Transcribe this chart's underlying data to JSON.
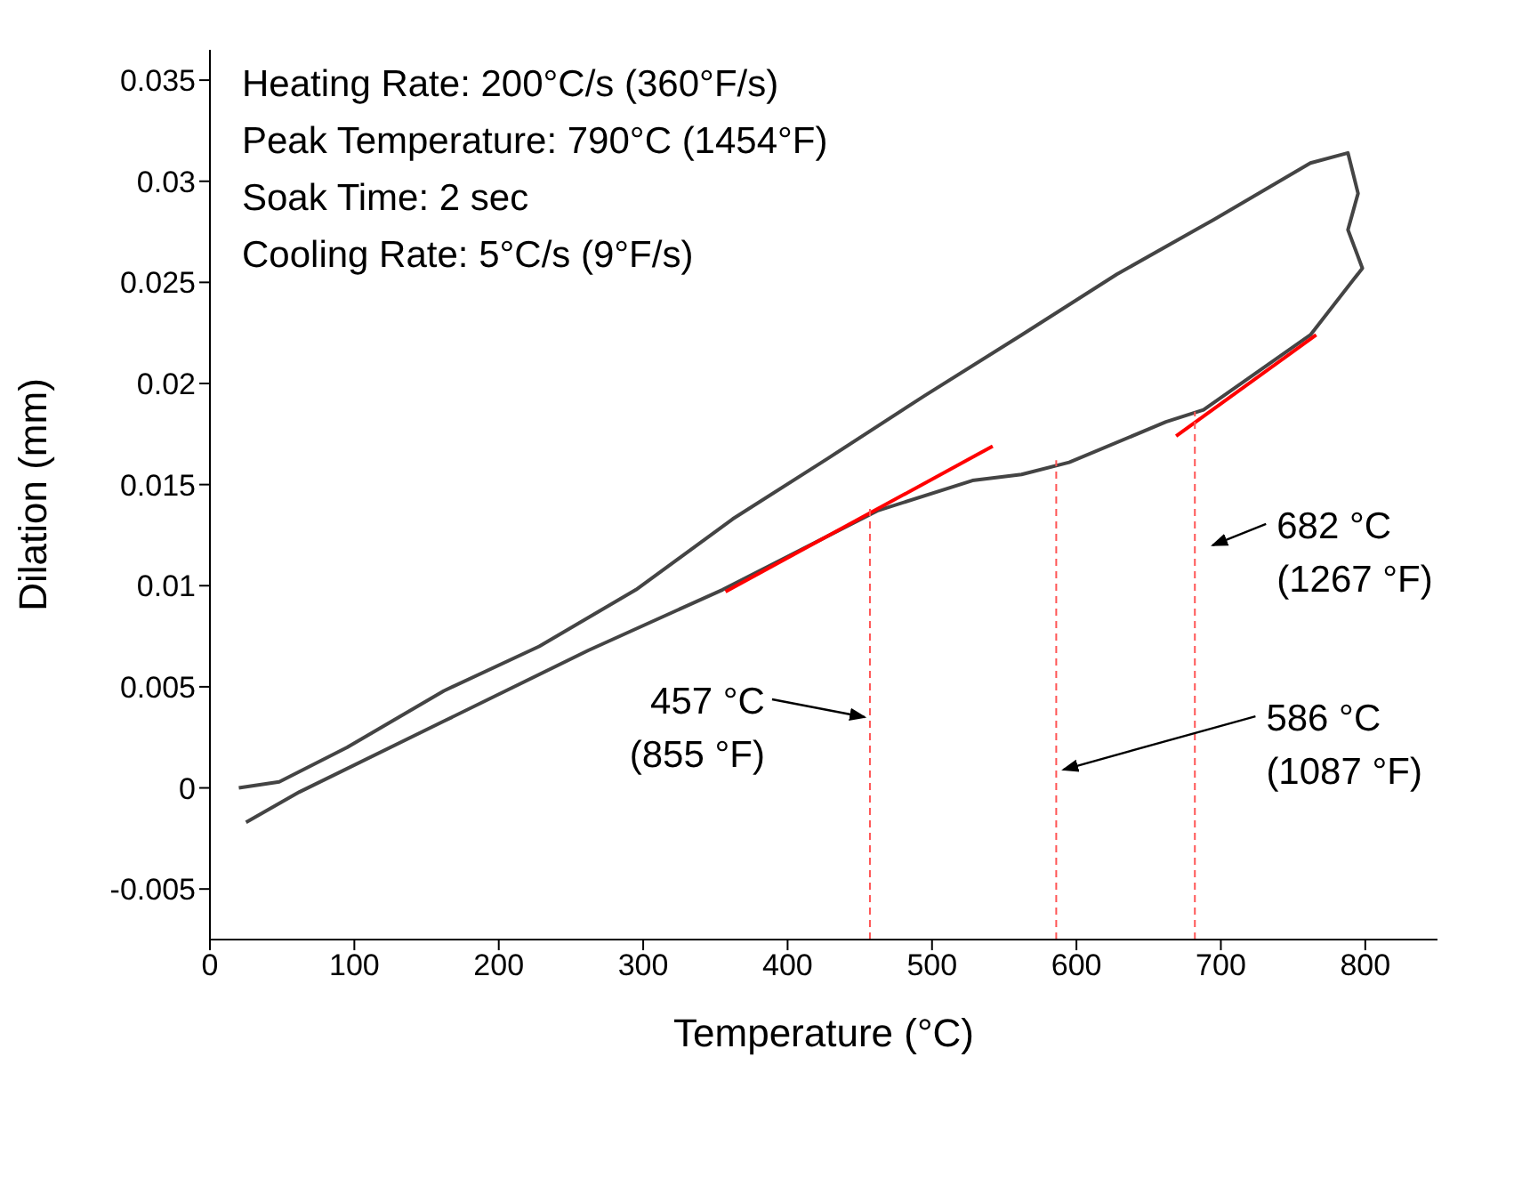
{
  "chart_data": {
    "type": "line",
    "xlabel": "Temperature (°C)",
    "ylabel": "Dilation (mm)",
    "xlim": [
      0,
      850
    ],
    "xticks": [
      0,
      100,
      200,
      300,
      400,
      500,
      600,
      700,
      800
    ],
    "ylim": [
      -0.0075,
      0.0365
    ],
    "yticks": [
      -0.005,
      0,
      0.005,
      0.01,
      0.015,
      0.02,
      0.025,
      0.03,
      0.035
    ],
    "marker": "none",
    "series": [
      {
        "color": "#444444",
        "line_style": "solid",
        "x": [
          20,
          48,
          95,
          162,
          228,
          295,
          362,
          428,
          495,
          562,
          628,
          695,
          762,
          788,
          795,
          788,
          798,
          762,
          688,
          662,
          595,
          562,
          528,
          462,
          355,
          262,
          162,
          62,
          25
        ],
        "values": [
          0.0,
          0.0003,
          0.002,
          0.0048,
          0.007,
          0.0098,
          0.0133,
          0.0163,
          0.0194,
          0.0224,
          0.0254,
          0.0281,
          0.0309,
          0.0314,
          0.0294,
          0.0276,
          0.0257,
          0.0224,
          0.0187,
          0.0181,
          0.0161,
          0.0155,
          0.0152,
          0.0137,
          0.0098,
          0.0068,
          0.0033,
          -0.0002,
          -0.0017
        ]
      },
      {
        "color": "#ff0000",
        "line_style": "solid",
        "x": [
          357,
          542
        ],
        "values": [
          0.0097,
          0.0169
        ]
      },
      {
        "color": "#ff0000",
        "line_style": "solid",
        "x": [
          669,
          766
        ],
        "values": [
          0.0174,
          0.0224
        ]
      },
      {
        "color": "#ff5555",
        "line_style": "dashed",
        "x": [
          457,
          457
        ],
        "values": [
          -0.0075,
          0.0139
        ]
      },
      {
        "color": "#ff5555",
        "line_style": "dashed",
        "x": [
          586,
          586
        ],
        "values": [
          -0.0075,
          0.0162
        ]
      },
      {
        "color": "#ff5555",
        "line_style": "dashed",
        "x": [
          682,
          682
        ],
        "values": [
          -0.0075,
          0.0186
        ]
      }
    ],
    "annotations": [
      "Heating Rate: 200°C/s (360°F/s)",
      "Peak Temperature: 790°C (1454°F)",
      "Soak Time: 2 sec",
      "Cooling Rate: 5°C/s (9°F/s)",
      {
        "text": "457 °C\n(855 °F)",
        "x": 457,
        "y": 0.0035
      },
      {
        "text": "586 °C\n(1087 °F)",
        "x": 586,
        "y": 0.0009
      },
      {
        "text": "682 °C\n(1267 °F)",
        "x": 682,
        "y": 0.012
      }
    ]
  }
}
